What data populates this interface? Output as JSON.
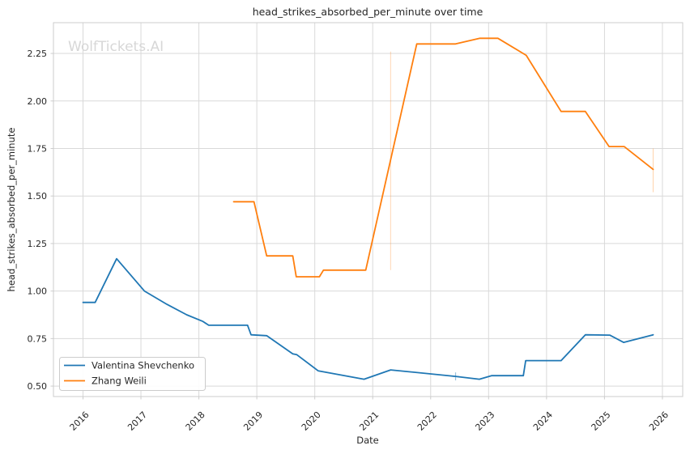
{
  "title": "head_strikes_absorbed_per_minute over time",
  "watermark": "WolfTickets.AI",
  "xlabel": "Date",
  "ylabel": "head_strikes_absorbed_per_minute",
  "legend": {
    "items": [
      {
        "label": "Valentina Shevchenko",
        "color": "#1f77b4"
      },
      {
        "label": "Zhang Weili",
        "color": "#ff7f0e"
      }
    ]
  },
  "colors": {
    "series_blue": "#1f77b4",
    "series_orange": "#ff7f0e",
    "grid": "#d9d9d9",
    "spine": "#cccccc",
    "text": "#262626",
    "watermark": "#d7d7d7",
    "background": "#ffffff"
  },
  "chart_data": {
    "type": "line",
    "title": "head_strikes_absorbed_per_minute over time",
    "xlabel": "Date",
    "ylabel": "head_strikes_absorbed_per_minute",
    "xlim": [
      2015.49,
      2026.35
    ],
    "ylim": [
      0.445,
      2.412
    ],
    "x_ticks": [
      2016,
      2017,
      2018,
      2019,
      2020,
      2021,
      2022,
      2023,
      2024,
      2025,
      2026
    ],
    "x_tick_labels": [
      "2016",
      "2017",
      "2018",
      "2019",
      "2020",
      "2021",
      "2022",
      "2023",
      "2024",
      "2025",
      "2026"
    ],
    "y_ticks": [
      0.5,
      0.75,
      1.0,
      1.25,
      1.5,
      1.75,
      2.0,
      2.25
    ],
    "y_tick_labels": [
      "0.50",
      "0.75",
      "1.00",
      "1.25",
      "1.50",
      "1.75",
      "2.00",
      "2.25"
    ],
    "grid": true,
    "legend_position": "lower left",
    "series": [
      {
        "name": "Valentina Shevchenko",
        "color": "#1f77b4",
        "points": [
          [
            2016.0,
            0.94
          ],
          [
            2016.21,
            0.94
          ],
          [
            2016.58,
            1.17
          ],
          [
            2017.06,
            1.0
          ],
          [
            2017.45,
            0.93
          ],
          [
            2017.79,
            0.875
          ],
          [
            2018.07,
            0.84
          ],
          [
            2018.17,
            0.82
          ],
          [
            2018.84,
            0.82
          ],
          [
            2018.9,
            0.77
          ],
          [
            2019.17,
            0.765
          ],
          [
            2019.62,
            0.67
          ],
          [
            2019.69,
            0.665
          ],
          [
            2020.06,
            0.58
          ],
          [
            2020.85,
            0.536
          ],
          [
            2021.31,
            0.585
          ],
          [
            2022.43,
            0.551
          ],
          [
            2022.84,
            0.536
          ],
          [
            2023.05,
            0.555
          ],
          [
            2023.6,
            0.555
          ],
          [
            2023.64,
            0.634
          ],
          [
            2024.25,
            0.634
          ],
          [
            2024.67,
            0.77
          ],
          [
            2025.09,
            0.768
          ],
          [
            2025.33,
            0.73
          ],
          [
            2025.84,
            0.77
          ]
        ]
      },
      {
        "name": "Zhang Weili",
        "color": "#ff7f0e",
        "points": [
          [
            2018.6,
            1.47
          ],
          [
            2018.95,
            1.47
          ],
          [
            2019.17,
            1.185
          ],
          [
            2019.62,
            1.185
          ],
          [
            2019.68,
            1.075
          ],
          [
            2020.08,
            1.075
          ],
          [
            2020.15,
            1.11
          ],
          [
            2020.88,
            1.11
          ],
          [
            2021.76,
            2.3
          ],
          [
            2022.43,
            2.3
          ],
          [
            2022.85,
            2.33
          ],
          [
            2023.16,
            2.33
          ],
          [
            2023.65,
            2.24
          ],
          [
            2024.25,
            1.945
          ],
          [
            2024.67,
            1.945
          ],
          [
            2025.08,
            1.76
          ],
          [
            2025.34,
            1.76
          ],
          [
            2025.84,
            1.64
          ]
        ]
      }
    ],
    "error_bars": [
      {
        "series": "Zhang Weili",
        "x": 2021.31,
        "y_low": 1.11,
        "y_high": 2.26,
        "color": "#ff7f0e",
        "opacity": 0.25,
        "marker": "line"
      },
      {
        "series": "Zhang Weili",
        "x": 2025.84,
        "y_low": 1.52,
        "y_high": 1.75,
        "color": "#ff7f0e",
        "opacity": 0.3,
        "marker": "line"
      },
      {
        "series": "Valentina Shevchenko",
        "x": 2022.43,
        "y_low": 0.53,
        "y_high": 0.572,
        "color": "#1f77b4",
        "opacity": 0.45,
        "marker": "plus"
      }
    ]
  }
}
